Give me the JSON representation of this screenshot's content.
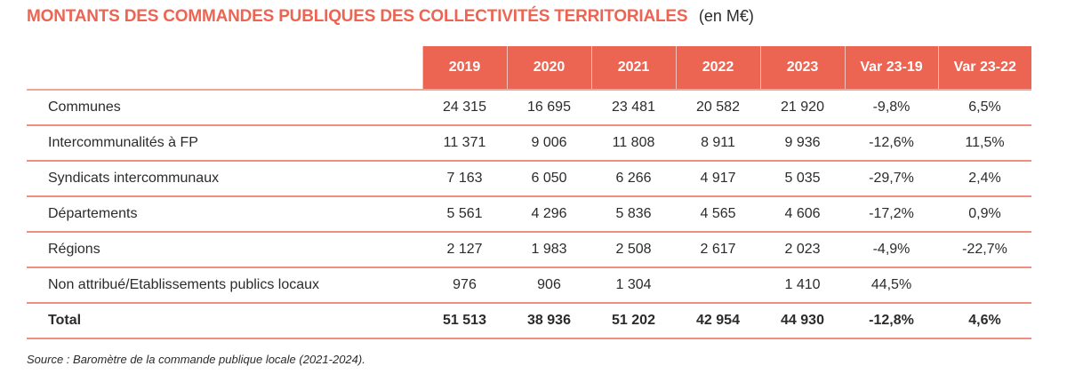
{
  "title": {
    "main": "MONTANTS DES COMMANDES PUBLIQUES DES COLLECTIVITÉS TERRITORIALES",
    "unit": "(en M€)"
  },
  "colors": {
    "accent": "#EC6553",
    "row_separator": "#EF8F82",
    "header_text": "#FFFFFF",
    "body_text": "#2B2B2B"
  },
  "table": {
    "headers": [
      "",
      "2019",
      "2020",
      "2021",
      "2022",
      "2023",
      "Var 23-19",
      "Var 23-22"
    ],
    "rows": [
      {
        "label": "Communes",
        "values": [
          "24 315",
          "16 695",
          "23 481",
          "20 582",
          "21 920",
          "-9,8%",
          "6,5%"
        ]
      },
      {
        "label": "Intercommunalités à FP",
        "values": [
          "11 371",
          "9 006",
          "11 808",
          "8 911",
          "9 936",
          "-12,6%",
          "11,5%"
        ]
      },
      {
        "label": "Syndicats intercommunaux",
        "values": [
          "7 163",
          "6 050",
          "6 266",
          "4 917",
          "5 035",
          "-29,7%",
          "2,4%"
        ]
      },
      {
        "label": "Départements",
        "values": [
          "5 561",
          "4 296",
          "5 836",
          "4 565",
          "4 606",
          "-17,2%",
          "0,9%"
        ]
      },
      {
        "label": "Régions",
        "values": [
          "2 127",
          "1 983",
          "2 508",
          "2 617",
          "2 023",
          "-4,9%",
          "-22,7%"
        ]
      },
      {
        "label": "Non attribué/Etablissements publics locaux",
        "values": [
          "976",
          "906",
          "1 304",
          "",
          "1 410",
          "44,5%",
          ""
        ]
      }
    ],
    "total": {
      "label": "Total",
      "values": [
        "51 513",
        "38 936",
        "51 202",
        "42 954",
        "44 930",
        "-12,8%",
        "4,6%"
      ]
    }
  },
  "source": "Source : Baromètre de la commande publique locale (2021-2024)."
}
